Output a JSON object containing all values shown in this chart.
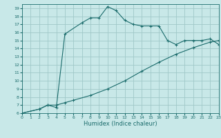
{
  "xlabel": "Humidex (Indice chaleur)",
  "bg_color": "#c8e8e8",
  "line_color": "#1a6b6b",
  "grid_color": "#a0c8c8",
  "curve1_x": [
    0,
    2,
    3,
    4,
    5,
    7,
    8,
    9,
    10,
    11,
    12,
    13,
    14,
    15,
    16,
    17,
    18,
    19,
    20,
    21,
    22,
    23
  ],
  "curve1_y": [
    6,
    6.5,
    7,
    6.7,
    15.8,
    17.2,
    17.8,
    17.8,
    19.2,
    18.7,
    17.5,
    17.0,
    16.8,
    16.8,
    16.8,
    15.0,
    14.5,
    15.0,
    15.0,
    15.0,
    15.2,
    14.5
  ],
  "curve2_x": [
    0,
    2,
    3,
    4,
    5,
    6,
    8,
    10,
    12,
    14,
    16,
    18,
    20,
    22,
    23
  ],
  "curve2_y": [
    6,
    6.5,
    7,
    7,
    7.3,
    7.6,
    8.2,
    9.0,
    10.0,
    11.2,
    12.3,
    13.3,
    14.1,
    14.8,
    15.0
  ],
  "xlim": [
    0,
    23
  ],
  "ylim": [
    6,
    19.5
  ],
  "yticks": [
    6,
    7,
    8,
    9,
    10,
    11,
    12,
    13,
    14,
    15,
    16,
    17,
    18,
    19
  ],
  "xticks": [
    0,
    1,
    2,
    3,
    4,
    5,
    6,
    7,
    8,
    9,
    10,
    11,
    12,
    13,
    14,
    15,
    16,
    17,
    18,
    19,
    20,
    21,
    22,
    23
  ]
}
